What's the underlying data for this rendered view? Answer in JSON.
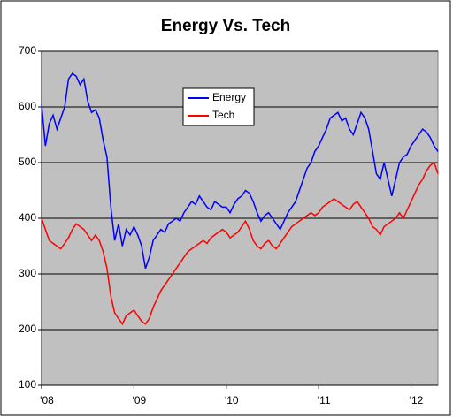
{
  "chart_data": {
    "type": "line",
    "title": "Energy Vs. Tech",
    "categories": [
      "'08",
      null,
      null,
      null,
      null,
      null,
      null,
      null,
      null,
      null,
      null,
      null,
      null,
      null,
      null,
      null,
      null,
      null,
      null,
      null,
      null,
      null,
      null,
      null,
      "'09",
      null,
      null,
      null,
      null,
      null,
      null,
      null,
      null,
      null,
      null,
      null,
      null,
      null,
      null,
      null,
      null,
      null,
      null,
      null,
      null,
      null,
      null,
      null,
      "'10",
      null,
      null,
      null,
      null,
      null,
      null,
      null,
      null,
      null,
      null,
      null,
      null,
      null,
      null,
      null,
      null,
      null,
      null,
      null,
      null,
      null,
      null,
      null,
      "'11",
      null,
      null,
      null,
      null,
      null,
      null,
      null,
      null,
      null,
      null,
      null,
      null,
      null,
      null,
      null,
      null,
      null,
      null,
      null,
      null,
      null,
      null,
      null,
      "'12",
      null,
      null,
      null,
      null,
      null,
      null,
      null
    ],
    "series": [
      {
        "name": "Energy",
        "color": "#0000ff",
        "values": [
          605,
          530,
          570,
          585,
          560,
          580,
          600,
          650,
          660,
          655,
          640,
          650,
          610,
          590,
          595,
          580,
          540,
          510,
          420,
          360,
          390,
          350,
          380,
          370,
          385,
          370,
          350,
          310,
          330,
          360,
          370,
          380,
          375,
          390,
          395,
          400,
          395,
          410,
          420,
          430,
          425,
          440,
          430,
          420,
          415,
          430,
          425,
          420,
          420,
          410,
          425,
          435,
          440,
          450,
          445,
          430,
          410,
          395,
          405,
          410,
          400,
          390,
          380,
          395,
          410,
          420,
          430,
          450,
          470,
          490,
          500,
          520,
          530,
          545,
          560,
          580,
          585,
          590,
          575,
          580,
          560,
          550,
          570,
          590,
          580,
          560,
          520,
          480,
          470,
          500,
          470,
          440,
          470,
          500,
          510,
          515,
          530,
          540,
          550,
          560,
          555,
          545,
          530,
          520
        ]
      },
      {
        "name": "Tech",
        "color": "#ff0000",
        "values": [
          400,
          380,
          360,
          355,
          350,
          345,
          355,
          365,
          380,
          390,
          385,
          380,
          370,
          360,
          370,
          360,
          340,
          310,
          260,
          230,
          220,
          210,
          225,
          230,
          235,
          225,
          215,
          210,
          220,
          240,
          255,
          270,
          280,
          290,
          300,
          310,
          320,
          330,
          340,
          345,
          350,
          355,
          360,
          355,
          365,
          370,
          375,
          380,
          375,
          365,
          370,
          375,
          385,
          395,
          380,
          360,
          350,
          345,
          355,
          360,
          350,
          345,
          355,
          365,
          375,
          385,
          390,
          395,
          400,
          405,
          410,
          405,
          410,
          420,
          425,
          430,
          435,
          430,
          425,
          420,
          415,
          425,
          430,
          420,
          410,
          400,
          385,
          380,
          370,
          385,
          390,
          395,
          400,
          410,
          400,
          415,
          430,
          445,
          460,
          470,
          485,
          495,
          500,
          480
        ]
      }
    ],
    "ylim": [
      100,
      700
    ],
    "yticks": [
      100,
      200,
      300,
      400,
      500,
      600,
      700
    ],
    "grid": true
  }
}
